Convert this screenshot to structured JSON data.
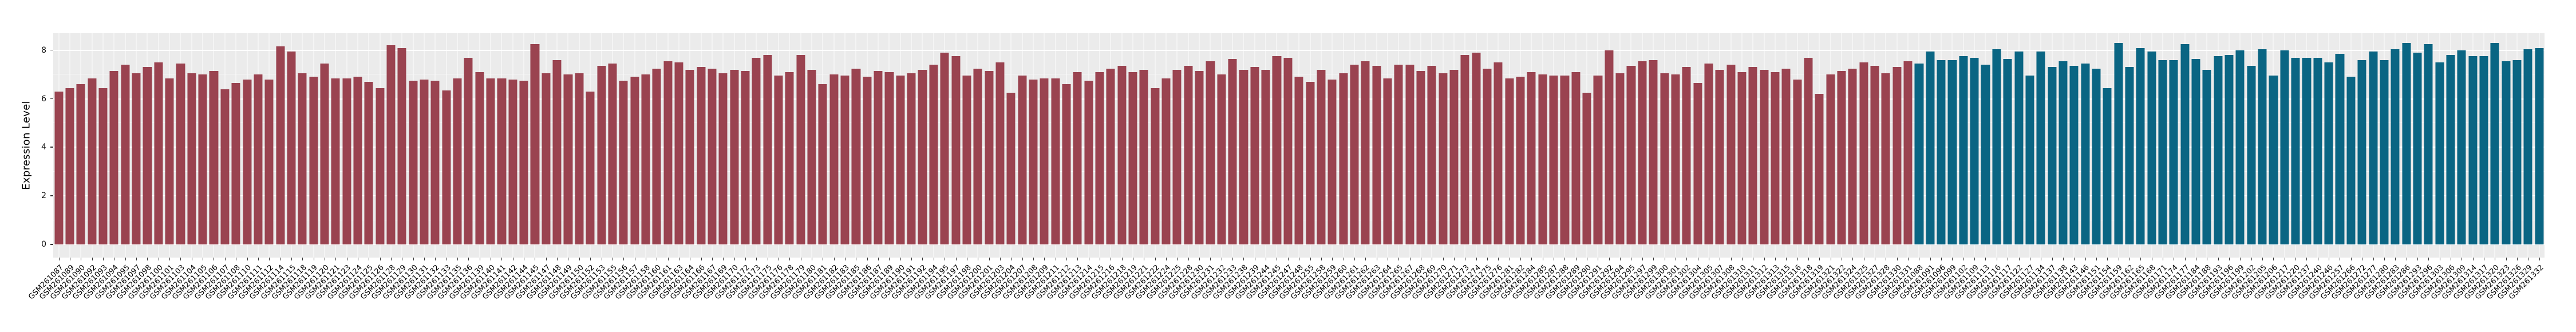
{
  "figure": {
    "title": "",
    "ylabel": "Expression Level"
  },
  "chart_data": {
    "type": "bar",
    "title": "",
    "xlabel": "",
    "ylabel": "Expression Level",
    "ylim": [
      0,
      8.7
    ],
    "yticks": [
      0,
      2,
      4,
      6,
      8
    ],
    "grid": "white major gridlines at 0,2,4,6,8 and minor at 1,3,5,7 on light-gray panel",
    "panel_background": "#EBEBEB",
    "legend_position": "none",
    "bar_groups_note": "two color groups plotted consecutively on a shared categorical x-axis",
    "series": [
      {
        "name": "series-1",
        "color": "#9A4350",
        "labels": [
          "GSM261087",
          "GSM261089",
          "GSM261090",
          "GSM261092",
          "GSM261093",
          "GSM261094",
          "GSM261095",
          "GSM261097",
          "GSM261098",
          "GSM261100",
          "GSM261101",
          "GSM261103",
          "GSM261104",
          "GSM261105",
          "GSM261106",
          "GSM261107",
          "GSM261108",
          "GSM261110",
          "GSM261111",
          "GSM261112",
          "GSM261114",
          "GSM261115",
          "GSM261118",
          "GSM261119",
          "GSM261120",
          "GSM261121",
          "GSM261123",
          "GSM261124",
          "GSM261125",
          "GSM261126",
          "GSM261128",
          "GSM261129",
          "GSM261130",
          "GSM261131",
          "GSM261132",
          "GSM261133",
          "GSM261135",
          "GSM261136",
          "GSM261139",
          "GSM261140",
          "GSM261141",
          "GSM261142",
          "GSM261144",
          "GSM261145",
          "GSM261147",
          "GSM261148",
          "GSM261149",
          "GSM261150",
          "GSM261152",
          "GSM261153",
          "GSM261155",
          "GSM261156",
          "GSM261157",
          "GSM261158",
          "GSM261160",
          "GSM261161",
          "GSM261163",
          "GSM261164",
          "GSM261166",
          "GSM261167",
          "GSM261169",
          "GSM261170",
          "GSM261172",
          "GSM261173",
          "GSM261175",
          "GSM261176",
          "GSM261178",
          "GSM261179",
          "GSM261180",
          "GSM261181",
          "GSM261182",
          "GSM261183",
          "GSM261185",
          "GSM261186",
          "GSM261187",
          "GSM261189",
          "GSM261190",
          "GSM261191",
          "GSM261192",
          "GSM261194",
          "GSM261195",
          "GSM261197",
          "GSM261198",
          "GSM261200",
          "GSM261201",
          "GSM261203",
          "GSM261204",
          "GSM261207",
          "GSM261208",
          "GSM261209",
          "GSM261211",
          "GSM261212",
          "GSM261213",
          "GSM261214",
          "GSM261215",
          "GSM261216",
          "GSM261218",
          "GSM261219",
          "GSM261221",
          "GSM261222",
          "GSM261224",
          "GSM261225",
          "GSM261228",
          "GSM261230",
          "GSM261231",
          "GSM261232",
          "GSM261233",
          "GSM261238",
          "GSM261239",
          "GSM261244",
          "GSM261245",
          "GSM261247",
          "GSM261248",
          "GSM261255",
          "GSM261258",
          "GSM261259",
          "GSM261260",
          "GSM261261",
          "GSM261262",
          "GSM261263",
          "GSM261264",
          "GSM261265",
          "GSM261267",
          "GSM261268",
          "GSM261269",
          "GSM261270",
          "GSM261271",
          "GSM261273",
          "GSM261274",
          "GSM261275",
          "GSM261276",
          "GSM261281",
          "GSM261282",
          "GSM261284",
          "GSM261285",
          "GSM261287",
          "GSM261288",
          "GSM261289",
          "GSM261290",
          "GSM261291",
          "GSM261292",
          "GSM261294",
          "GSM261295",
          "GSM261297",
          "GSM261299",
          "GSM261300",
          "GSM261301",
          "GSM261302",
          "GSM261304",
          "GSM261305",
          "GSM261307",
          "GSM261308",
          "GSM261310",
          "GSM261311",
          "GSM261312",
          "GSM261313",
          "GSM261315",
          "GSM261316",
          "GSM261318",
          "GSM261319",
          "GSM261321",
          "GSM261322",
          "GSM261324",
          "GSM261325",
          "GSM261327",
          "GSM261328",
          "GSM261330",
          "GSM261331"
        ],
        "values": [
          6.3,
          6.45,
          6.6,
          6.85,
          6.45,
          7.15,
          7.4,
          7.05,
          7.3,
          7.5,
          6.85,
          7.45,
          7.05,
          7.0,
          7.15,
          6.4,
          6.65,
          6.8,
          7.0,
          6.8,
          8.15,
          7.95,
          7.05,
          6.9,
          7.45,
          6.85,
          6.85,
          6.9,
          6.7,
          6.45,
          8.2,
          8.1,
          6.75,
          6.8,
          6.75,
          6.35,
          6.85,
          7.7,
          7.1,
          6.85,
          6.85,
          6.8,
          6.75,
          8.25,
          7.05,
          7.6,
          7.0,
          7.05,
          6.3,
          7.35,
          7.45,
          6.75,
          6.9,
          7.0,
          7.25,
          7.55,
          7.5,
          7.2,
          7.3,
          7.25,
          7.05,
          7.2,
          7.15,
          7.7,
          7.8,
          6.95,
          7.1,
          7.8,
          7.2,
          6.6,
          7.0,
          6.95,
          7.25,
          6.9,
          7.15,
          7.1,
          6.95,
          7.05,
          7.2,
          7.4,
          7.9,
          7.75,
          6.95,
          7.25,
          7.15,
          7.5,
          6.25,
          6.95,
          6.8,
          6.85,
          6.85,
          6.6,
          7.1,
          6.75,
          7.1,
          7.25,
          7.35,
          7.1,
          7.2,
          6.45,
          6.85,
          7.2,
          7.35,
          7.15,
          7.55,
          7.0,
          7.65,
          7.2,
          7.3,
          7.2,
          7.75,
          7.7,
          6.9,
          6.7,
          7.2,
          6.8,
          7.05,
          7.4,
          7.55,
          7.35,
          6.85,
          7.4,
          7.4,
          7.15,
          7.35,
          7.05,
          7.2,
          7.8,
          7.9,
          7.25,
          7.5,
          6.85,
          6.9,
          7.1,
          7.0,
          6.95,
          6.95,
          7.1,
          6.25,
          6.95,
          8.0,
          7.05,
          7.35,
          7.55,
          7.6,
          7.05,
          7.0,
          7.3,
          6.65,
          7.45,
          7.2,
          7.4,
          7.1,
          7.3,
          7.2,
          7.1,
          7.25,
          6.8,
          7.7,
          6.2,
          7.0,
          7.15,
          7.25,
          7.5,
          7.35,
          7.05,
          7.3,
          7.55
        ]
      },
      {
        "name": "series-2",
        "color": "#0A6583",
        "labels": [
          "GSM261088",
          "GSM261091",
          "GSM261096",
          "GSM261099",
          "GSM261102",
          "GSM261109",
          "GSM261113",
          "GSM261116",
          "GSM261117",
          "GSM261122",
          "GSM261127",
          "GSM261134",
          "GSM261137",
          "GSM261138",
          "GSM261143",
          "GSM261146",
          "GSM261151",
          "GSM261154",
          "GSM261159",
          "GSM261162",
          "GSM261165",
          "GSM261168",
          "GSM261171",
          "GSM261174",
          "GSM261177",
          "GSM261184",
          "GSM261188",
          "GSM261193",
          "GSM261196",
          "GSM261199",
          "GSM261202",
          "GSM261205",
          "GSM261206",
          "GSM261217",
          "GSM261220",
          "GSM261237",
          "GSM261240",
          "GSM261246",
          "GSM261257",
          "GSM261266",
          "GSM261272",
          "GSM261277",
          "GSM261280",
          "GSM261283",
          "GSM261286",
          "GSM261293",
          "GSM261296",
          "GSM261303",
          "GSM261306",
          "GSM261309",
          "GSM261314",
          "GSM261317",
          "GSM261320",
          "GSM261323",
          "GSM261326",
          "GSM261329",
          "GSM261332"
        ],
        "values": [
          7.45,
          7.95,
          7.6,
          7.6,
          7.75,
          7.7,
          7.4,
          8.05,
          7.65,
          7.95,
          6.95,
          7.95,
          7.3,
          7.55,
          7.35,
          7.45,
          7.25,
          6.45,
          8.3,
          7.3,
          8.1,
          7.95,
          7.6,
          7.6,
          8.25,
          7.65,
          7.2,
          7.75,
          7.8,
          8.0,
          7.35,
          8.05,
          6.95,
          8.0,
          7.7,
          7.7,
          7.7,
          7.5,
          7.85,
          6.9,
          7.6,
          7.95,
          7.6,
          8.05,
          8.3,
          7.9,
          8.25,
          7.5,
          7.8,
          8.0,
          7.75,
          7.75,
          8.3,
          7.55,
          7.6,
          8.05,
          8.1
        ]
      }
    ]
  }
}
